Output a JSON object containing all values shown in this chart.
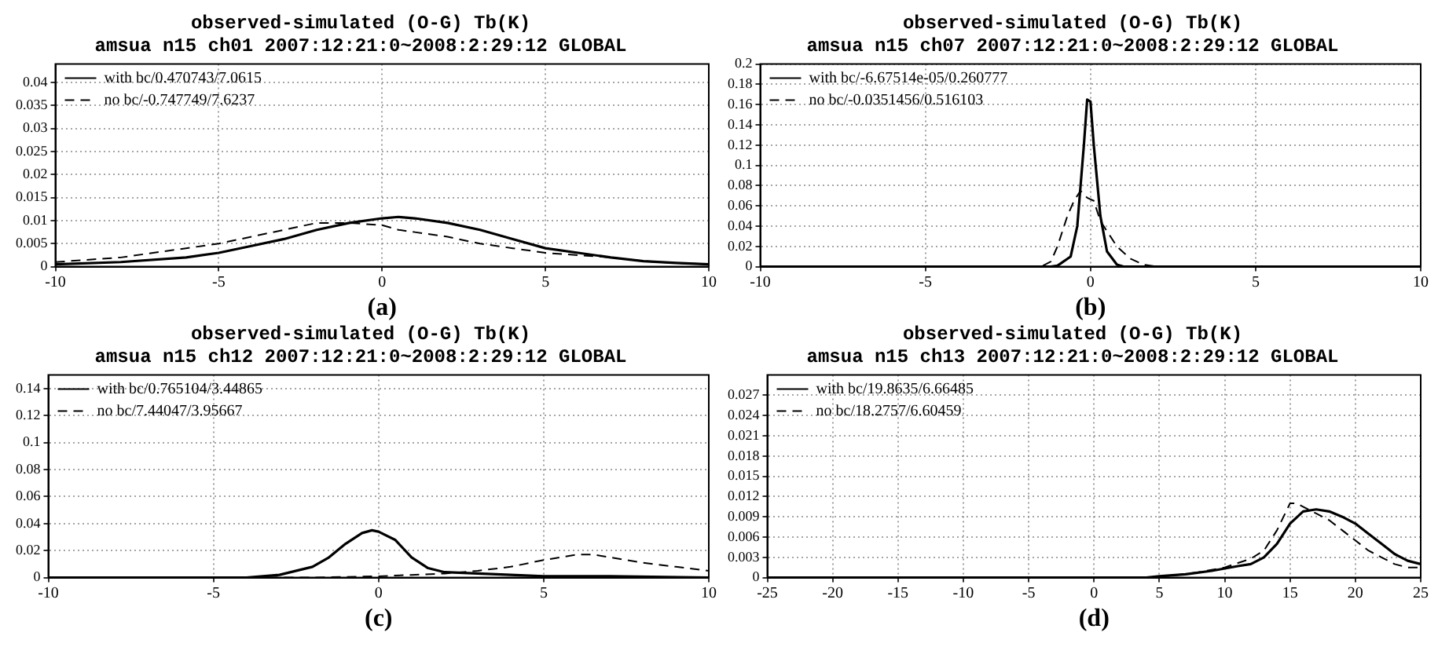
{
  "chart_data": [
    {
      "type": "line",
      "title": "observed-simulated (O-G) Tb(K)",
      "subtitle": "amsua n15 ch01 2007:12:21:0~2008:2:29:12 GLOBAL",
      "xlabel": "(a)",
      "xlim": [
        -10,
        10
      ],
      "xticks": [
        -10,
        -5,
        0,
        5,
        10
      ],
      "ylim": [
        0,
        0.044
      ],
      "yticks": [
        0,
        0.005,
        0.01,
        0.015,
        0.02,
        0.025,
        0.03,
        0.035,
        0.04
      ],
      "grid": true,
      "legend": "top left",
      "series": [
        {
          "name": "with bc/0.470743/7.0615",
          "color": "#000000",
          "line_style": "solid",
          "x": [
            -10,
            -8,
            -6,
            -5,
            -4,
            -3,
            -2,
            -1,
            0,
            0.5,
            1,
            2,
            3,
            4,
            5,
            6,
            7,
            8,
            9,
            10
          ],
          "values": [
            0.0005,
            0.001,
            0.002,
            0.003,
            0.0045,
            0.006,
            0.008,
            0.0095,
            0.0105,
            0.0108,
            0.0105,
            0.0095,
            0.008,
            0.006,
            0.004,
            0.003,
            0.002,
            0.0012,
            0.0008,
            0.0005
          ]
        },
        {
          "name": "no bc/-0.747749/7.6237",
          "color": "#000000",
          "line_style": "dashed",
          "x": [
            -10,
            -8,
            -6,
            -5,
            -4,
            -3,
            -2,
            -1,
            0,
            0.5,
            1,
            2,
            3,
            4,
            5,
            6,
            7,
            8,
            9,
            10
          ],
          "values": [
            0.001,
            0.002,
            0.004,
            0.005,
            0.0065,
            0.008,
            0.0095,
            0.0095,
            0.009,
            0.008,
            0.0075,
            0.0065,
            0.005,
            0.004,
            0.003,
            0.0025,
            0.002,
            0.0012,
            0.0008,
            0.0005
          ]
        }
      ]
    },
    {
      "type": "line",
      "title": "observed-simulated (O-G) Tb(K)",
      "subtitle": "amsua n15 ch07 2007:12:21:0~2008:2:29:12 GLOBAL",
      "xlabel": "(b)",
      "xlim": [
        -10,
        10
      ],
      "xticks": [
        -10,
        -5,
        0,
        5,
        10
      ],
      "ylim": [
        0,
        0.2
      ],
      "yticks": [
        0,
        0.02,
        0.04,
        0.06,
        0.08,
        0.1,
        0.12,
        0.14,
        0.16,
        0.18,
        0.2
      ],
      "grid": true,
      "legend": "top left",
      "series": [
        {
          "name": "with bc/-6.67514e-05/0.260777",
          "color": "#000000",
          "line_style": "solid",
          "x": [
            -10,
            -1.2,
            -1,
            -0.6,
            -0.4,
            -0.2,
            -0.1,
            0,
            0.1,
            0.3,
            0.5,
            0.8,
            1,
            10
          ],
          "values": [
            0,
            0,
            0.001,
            0.01,
            0.04,
            0.12,
            0.165,
            0.163,
            0.12,
            0.05,
            0.015,
            0.002,
            0,
            0
          ]
        },
        {
          "name": "no bc/-0.0351456/0.516103",
          "color": "#000000",
          "line_style": "dashed",
          "x": [
            -10,
            -1.5,
            -1.2,
            -1,
            -0.7,
            -0.5,
            -0.3,
            -0.1,
            0.1,
            0.3,
            0.5,
            0.8,
            1.2,
            1.6,
            2,
            10
          ],
          "values": [
            0,
            0,
            0.005,
            0.02,
            0.05,
            0.065,
            0.075,
            0.068,
            0.065,
            0.045,
            0.035,
            0.02,
            0.008,
            0.002,
            0,
            0
          ]
        }
      ]
    },
    {
      "type": "line",
      "title": "observed-simulated (O-G) Tb(K)",
      "subtitle": "amsua n15 ch12 2007:12:21:0~2008:2:29:12 GLOBAL",
      "xlabel": "(c)",
      "xlim": [
        -10,
        10
      ],
      "xticks": [
        -10,
        -5,
        0,
        5,
        10
      ],
      "ylim": [
        0,
        0.15
      ],
      "yticks": [
        0,
        0.02,
        0.04,
        0.06,
        0.08,
        0.1,
        0.12,
        0.14
      ],
      "grid": true,
      "legend": "top left",
      "series": [
        {
          "name": "with bc/0.765104/3.44865",
          "color": "#000000",
          "line_style": "solid",
          "x": [
            -10,
            -4,
            -3,
            -2,
            -1.5,
            -1,
            -0.5,
            -0.2,
            0,
            0.5,
            1,
            1.5,
            2,
            3,
            4,
            5,
            7,
            10
          ],
          "values": [
            0,
            0,
            0.002,
            0.008,
            0.015,
            0.025,
            0.033,
            0.035,
            0.034,
            0.028,
            0.015,
            0.007,
            0.004,
            0.003,
            0.002,
            0.001,
            0.001,
            0
          ]
        },
        {
          "name": "no bc/7.44047/3.95667",
          "color": "#000000",
          "line_style": "dashed",
          "x": [
            -10,
            -4,
            -2,
            0,
            1,
            2,
            3,
            4,
            5,
            6,
            6.5,
            7,
            8,
            9,
            10
          ],
          "values": [
            0,
            0,
            0,
            0.001,
            0.002,
            0.003,
            0.005,
            0.008,
            0.013,
            0.017,
            0.017,
            0.015,
            0.011,
            0.008,
            0.005
          ]
        }
      ]
    },
    {
      "type": "line",
      "title": "observed-simulated (O-G) Tb(K)",
      "subtitle": "amsua n15 ch13 2007:12:21:0~2008:2:29:12 GLOBAL",
      "xlabel": "(d)",
      "xlim": [
        -25,
        25
      ],
      "xticks": [
        -25,
        -20,
        -15,
        -10,
        -5,
        0,
        5,
        10,
        15,
        20,
        25
      ],
      "ylim": [
        0,
        0.03
      ],
      "yticks": [
        0,
        0.003,
        0.006,
        0.009,
        0.012,
        0.015,
        0.018,
        0.021,
        0.024,
        0.027
      ],
      "grid": true,
      "legend": "top left",
      "series": [
        {
          "name": "with bc/19.8635/6.66485",
          "color": "#000000",
          "line_style": "solid",
          "x": [
            -25,
            4,
            5,
            7,
            9,
            11,
            12,
            13,
            14,
            15,
            16,
            17,
            18,
            19,
            20,
            21,
            22,
            23,
            24,
            25
          ],
          "values": [
            0,
            0,
            0.0002,
            0.0005,
            0.001,
            0.0017,
            0.002,
            0.003,
            0.005,
            0.008,
            0.0098,
            0.0101,
            0.0098,
            0.009,
            0.008,
            0.0065,
            0.005,
            0.0035,
            0.0025,
            0.002
          ]
        },
        {
          "name": "no bc/18.2757/6.60459",
          "color": "#000000",
          "line_style": "dashed",
          "x": [
            -25,
            4,
            6,
            8,
            10,
            12,
            13,
            14,
            15,
            15.5,
            16,
            17,
            18,
            19,
            20,
            21,
            22,
            23,
            24,
            25
          ],
          "values": [
            0,
            0,
            0.0003,
            0.0008,
            0.0015,
            0.0028,
            0.004,
            0.007,
            0.011,
            0.011,
            0.0105,
            0.0095,
            0.0085,
            0.007,
            0.0055,
            0.004,
            0.003,
            0.002,
            0.0015,
            0.0015
          ]
        }
      ]
    }
  ]
}
